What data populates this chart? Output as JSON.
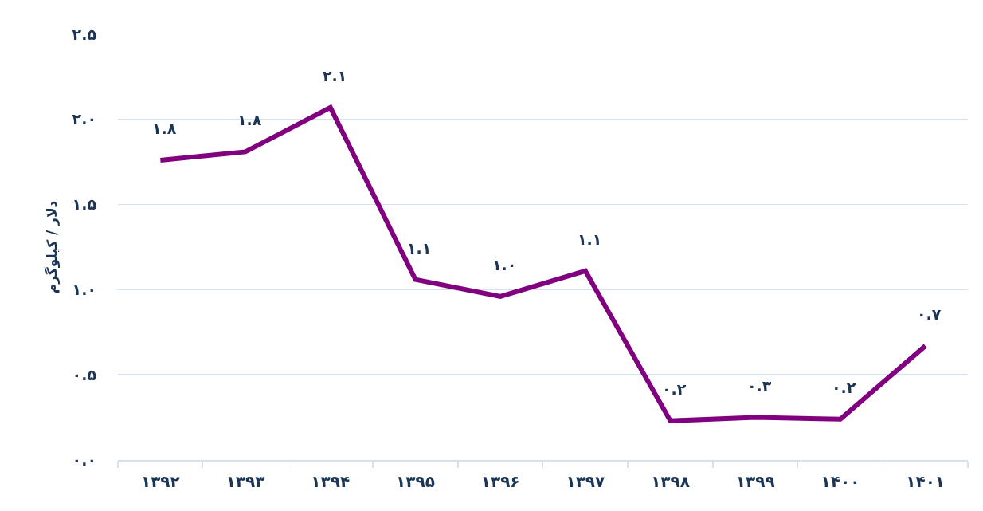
{
  "chart_data": {
    "type": "line",
    "ylabel": "دلار / کیلوگرم",
    "categories": [
      "۱۳۹۲",
      "۱۳۹۳",
      "۱۳۹۴",
      "۱۳۹۵",
      "۱۳۹۶",
      "۱۳۹۷",
      "۱۳۹۸",
      "۱۳۹۹",
      "۱۴۰۰",
      "۱۴۰۱"
    ],
    "series": [
      {
        "color": "#800080",
        "values": [
          1.76,
          1.81,
          2.07,
          1.06,
          0.96,
          1.11,
          0.23,
          0.25,
          0.24,
          0.67
        ],
        "value_labels": [
          "۱.۸",
          "۱.۸",
          "۲.۱",
          "۱.۱",
          "۱.۰",
          "۱.۱",
          "۰.۲",
          "۰.۳",
          "۰.۲",
          "۰.۷"
        ]
      }
    ],
    "ylim": [
      0,
      2.5
    ],
    "yticks": [
      {
        "value": 0,
        "label": "۰.۰"
      },
      {
        "value": 0.5,
        "label": "۰.۵"
      },
      {
        "value": 1,
        "label": "۱.۰"
      },
      {
        "value": 1.5,
        "label": "۱.۵"
      },
      {
        "value": 2,
        "label": "۲.۰"
      },
      {
        "value": 2.5,
        "label": "۲.۵"
      }
    ],
    "grid": "y",
    "line_style": "solid"
  }
}
